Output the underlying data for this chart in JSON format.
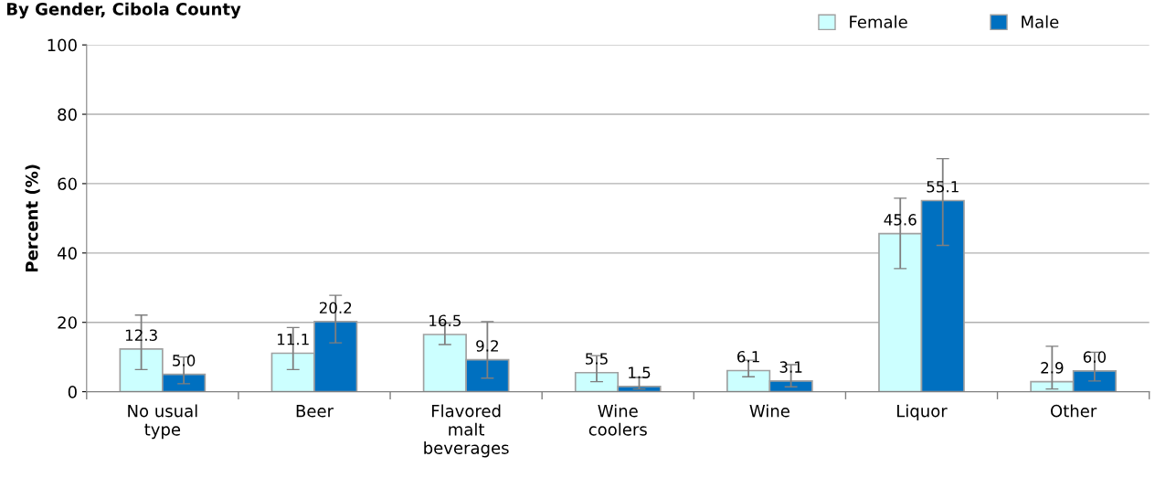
{
  "chart_data": {
    "type": "bar",
    "title": "By Gender, Cibola County",
    "ylabel": "Percent (%)",
    "categories": [
      "No usual\ntype",
      "Beer",
      "Flavored\nmalt\nbeverages",
      "Wine\ncoolers",
      "Wine",
      "Liquor",
      "Other"
    ],
    "series": [
      {
        "name": "Female",
        "color": "#ccffff",
        "values": [
          12.3,
          11.1,
          16.5,
          5.5,
          6.1,
          45.6,
          2.9
        ],
        "errors": [
          [
            6.4,
            22.1
          ],
          [
            6.4,
            18.5
          ],
          [
            13.6,
            19.8
          ],
          [
            2.9,
            10.4
          ],
          [
            4.3,
            9.1
          ],
          [
            35.5,
            55.8
          ],
          [
            0.8,
            13.1
          ]
        ],
        "value_labels": [
          "12.3",
          "11.1",
          "16.5",
          "5.5",
          "6.1",
          "45.6",
          "2.9"
        ]
      },
      {
        "name": "Male",
        "color": "#0070c0",
        "values": [
          5.0,
          20.2,
          9.2,
          1.5,
          3.1,
          55.1,
          6.0
        ],
        "errors": [
          [
            2.3,
            10.0
          ],
          [
            14.1,
            27.8
          ],
          [
            3.9,
            20.2
          ],
          [
            0.8,
            4.1
          ],
          [
            1.4,
            7.8
          ],
          [
            42.2,
            67.2
          ],
          [
            3.1,
            11.4
          ]
        ],
        "value_labels": [
          "5.0",
          "20.2",
          "9.2",
          "1.5",
          "3.1",
          "55.1",
          "6.0"
        ]
      }
    ],
    "ylim": [
      0,
      100
    ],
    "yticks": [
      0,
      20,
      40,
      60,
      80,
      100
    ],
    "grid": "y",
    "legend": "top right"
  }
}
